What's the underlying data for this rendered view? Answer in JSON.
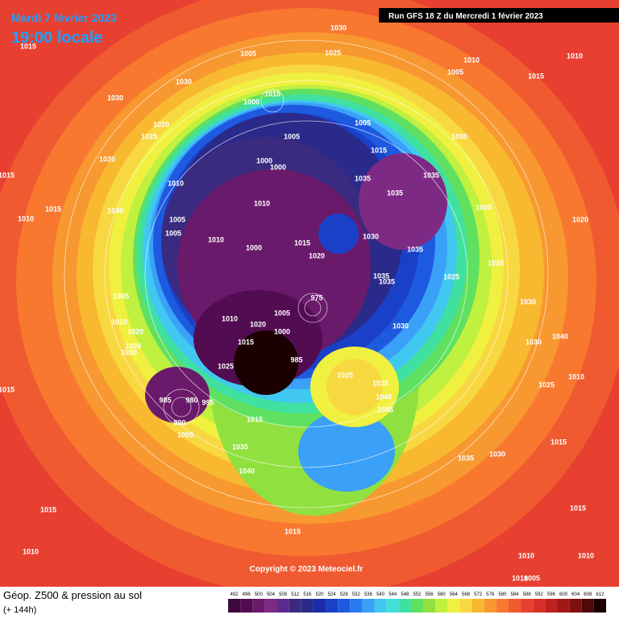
{
  "header": {
    "date": "Mardi 7 février 2023",
    "time": "19:00 locale",
    "run": "Run GFS 18 Z du Mercredi 1 février 2023"
  },
  "copyright": "Copyright © 2023 Meteociel.fr",
  "footer": {
    "title": "Géop. Z500 & pression au sol",
    "lead": "(+ 144h)"
  },
  "scale": {
    "values": [
      492,
      496,
      500,
      504,
      508,
      512,
      516,
      520,
      524,
      528,
      532,
      536,
      540,
      544,
      548,
      552,
      556,
      560,
      564,
      568,
      572,
      576,
      580,
      584,
      588,
      592,
      596,
      600,
      604,
      608,
      612
    ],
    "colors": [
      "#3c0a3c",
      "#520c52",
      "#6a1a6a",
      "#7d2a84",
      "#5c2a8c",
      "#3a2a80",
      "#2a2a8a",
      "#1c2ca8",
      "#1a40c8",
      "#1e5ae0",
      "#2a7af0",
      "#3aa0f8",
      "#40c8f0",
      "#40e0d8",
      "#40e0a0",
      "#60e060",
      "#90e040",
      "#c0f040",
      "#f0f040",
      "#f8d840",
      "#f8b830",
      "#f89830",
      "#f87830",
      "#f05a30",
      "#e84030",
      "#d83028",
      "#c02020",
      "#a01818",
      "#801010",
      "#500808",
      "#1a0000"
    ]
  },
  "isobar_labels": [
    "1030",
    "1005",
    "1025",
    "1010",
    "1005",
    "1010",
    "1015",
    "1015",
    "1030",
    "1030",
    "1000",
    "1015",
    "1020",
    "1025",
    "1005",
    "1005",
    "1030",
    "1015",
    "1020",
    "1000",
    "1000",
    "1035",
    "1035",
    "1035",
    "1015",
    "1010",
    "1015",
    "1030",
    "1010",
    "1030",
    "1020",
    "1010",
    "1005",
    "1005",
    "1010",
    "1030",
    "1015",
    "1035",
    "1000",
    "1020",
    "1035",
    "1025",
    "1035",
    "1035",
    "1005",
    "1030",
    "975",
    "1005",
    "1010",
    "1010",
    "1020",
    "1000",
    "1030",
    "1020",
    "1015",
    "985",
    "1020",
    "1020",
    "1030",
    "1040",
    "1025",
    "1025",
    "1035",
    "1010",
    "1025",
    "1040",
    "1015",
    "985",
    "980",
    "995",
    "1045",
    "990",
    "1015",
    "1005",
    "1035",
    "1015",
    "1035",
    "1030",
    "1040",
    "1015",
    "1015",
    "1015",
    "1010",
    "1010",
    "1010",
    "1010",
    "1005"
  ]
}
